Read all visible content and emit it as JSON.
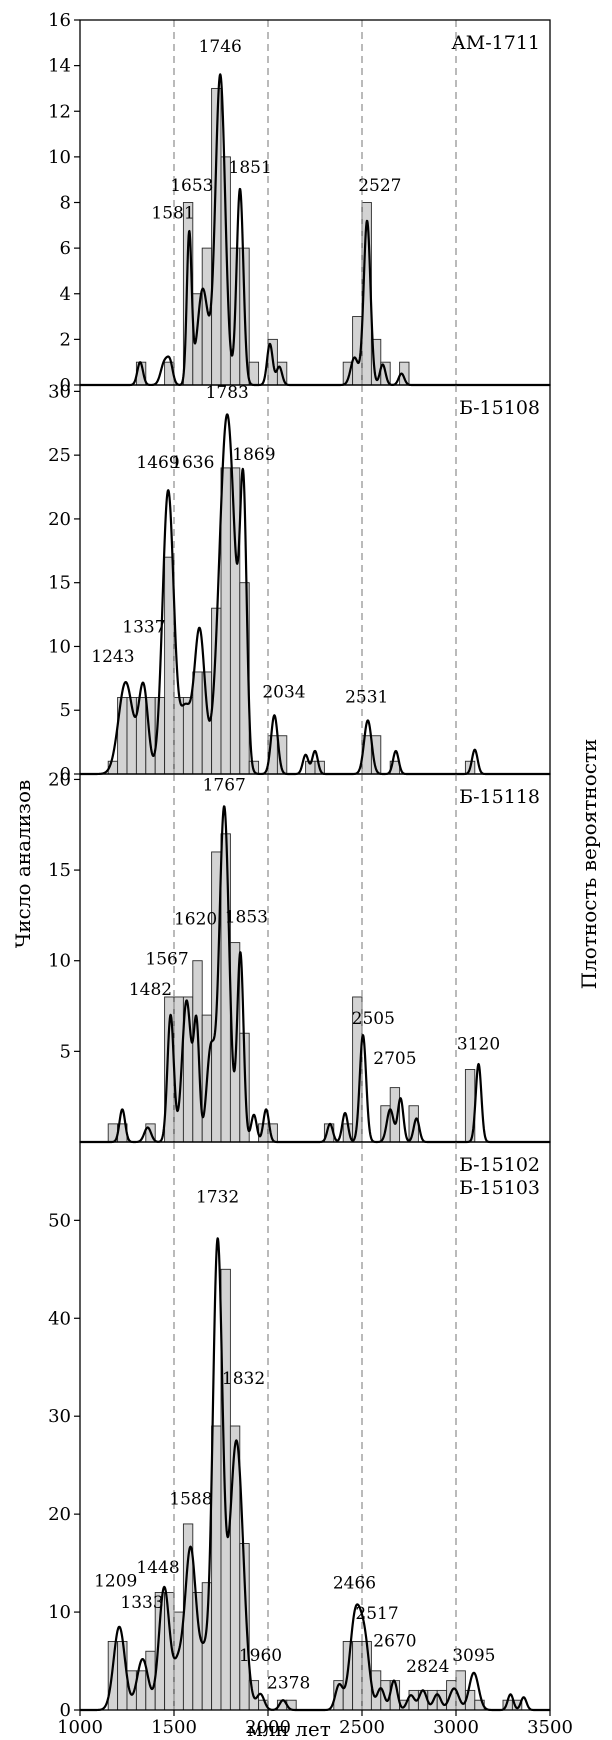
{
  "figure": {
    "ylabel_left": "Число анализов",
    "ylabel_right": "Плотность вероятности",
    "xlabel": "млн лет",
    "x_ticks": [
      1000,
      1500,
      2000,
      2500,
      3000,
      3500
    ]
  },
  "chart_data": [
    {
      "type": "bar",
      "sample_labels": [
        "АМ-1711"
      ],
      "xlim": [
        1000,
        3500
      ],
      "ylim": [
        0,
        16
      ],
      "yticks": [
        0,
        2,
        4,
        6,
        8,
        10,
        12,
        14,
        16
      ],
      "bin_width": 50,
      "dashed_reference_lines": [
        1500,
        2000,
        2500,
        3000
      ],
      "histogram": [
        {
          "x0": 1300,
          "count": 1
        },
        {
          "x0": 1450,
          "count": 1
        },
        {
          "x0": 1550,
          "count": 8
        },
        {
          "x0": 1600,
          "count": 4
        },
        {
          "x0": 1650,
          "count": 6
        },
        {
          "x0": 1700,
          "count": 13
        },
        {
          "x0": 1750,
          "count": 10
        },
        {
          "x0": 1800,
          "count": 6
        },
        {
          "x0": 1850,
          "count": 6
        },
        {
          "x0": 1900,
          "count": 1
        },
        {
          "x0": 2000,
          "count": 2
        },
        {
          "x0": 2050,
          "count": 1
        },
        {
          "x0": 2400,
          "count": 1
        },
        {
          "x0": 2450,
          "count": 3
        },
        {
          "x0": 2500,
          "count": 8
        },
        {
          "x0": 2550,
          "count": 2
        },
        {
          "x0": 2600,
          "count": 1
        },
        {
          "x0": 2700,
          "count": 1
        }
      ],
      "density_peaks": [
        {
          "x": 1320,
          "h": 1.0,
          "w": 15
        },
        {
          "x": 1450,
          "h": 1.0,
          "w": 20
        },
        {
          "x": 1480,
          "h": 0.8,
          "w": 15
        },
        {
          "x": 1581,
          "h": 6.6,
          "w": 13
        },
        {
          "x": 1653,
          "h": 4.2,
          "w": 28
        },
        {
          "x": 1746,
          "h": 13.6,
          "w": 26
        },
        {
          "x": 1851,
          "h": 8.6,
          "w": 18
        },
        {
          "x": 2010,
          "h": 1.8,
          "w": 15
        },
        {
          "x": 2060,
          "h": 0.8,
          "w": 15
        },
        {
          "x": 2460,
          "h": 1.2,
          "w": 20
        },
        {
          "x": 2527,
          "h": 7.2,
          "w": 18
        },
        {
          "x": 2610,
          "h": 0.9,
          "w": 15
        },
        {
          "x": 2710,
          "h": 0.5,
          "w": 15
        }
      ],
      "annotations": [
        {
          "text": "1746",
          "x": 1746,
          "y": 14.6
        },
        {
          "text": "1653",
          "x": 1595,
          "y": 8.5
        },
        {
          "text": "1581",
          "x": 1495,
          "y": 7.3
        },
        {
          "text": "1851",
          "x": 1905,
          "y": 9.3
        },
        {
          "text": "2527",
          "x": 2595,
          "y": 8.5
        }
      ]
    },
    {
      "type": "bar",
      "sample_labels": [
        "Б-15108"
      ],
      "xlim": [
        1000,
        3500
      ],
      "ylim": [
        0,
        30.5
      ],
      "yticks": [
        0,
        5,
        10,
        15,
        20,
        25,
        30
      ],
      "bin_width": 50,
      "dashed_reference_lines": [
        1500,
        2000,
        2500,
        3000
      ],
      "histogram": [
        {
          "x0": 1150,
          "count": 1
        },
        {
          "x0": 1200,
          "count": 6
        },
        {
          "x0": 1250,
          "count": 6
        },
        {
          "x0": 1300,
          "count": 6
        },
        {
          "x0": 1350,
          "count": 6
        },
        {
          "x0": 1400,
          "count": 6
        },
        {
          "x0": 1450,
          "count": 17
        },
        {
          "x0": 1500,
          "count": 6
        },
        {
          "x0": 1550,
          "count": 6
        },
        {
          "x0": 1600,
          "count": 8
        },
        {
          "x0": 1650,
          "count": 8
        },
        {
          "x0": 1700,
          "count": 13
        },
        {
          "x0": 1750,
          "count": 24
        },
        {
          "x0": 1800,
          "count": 24
        },
        {
          "x0": 1850,
          "count": 15
        },
        {
          "x0": 1900,
          "count": 1
        },
        {
          "x0": 2000,
          "count": 3
        },
        {
          "x0": 2050,
          "count": 3
        },
        {
          "x0": 2200,
          "count": 1
        },
        {
          "x0": 2250,
          "count": 1
        },
        {
          "x0": 2500,
          "count": 3
        },
        {
          "x0": 2550,
          "count": 3
        },
        {
          "x0": 2650,
          "count": 1
        },
        {
          "x0": 3050,
          "count": 1
        }
      ],
      "density_peaks": [
        {
          "x": 1243,
          "h": 7.2,
          "w": 38
        },
        {
          "x": 1337,
          "h": 6.8,
          "w": 25
        },
        {
          "x": 1469,
          "h": 22.2,
          "w": 30
        },
        {
          "x": 1560,
          "h": 5.0,
          "w": 30
        },
        {
          "x": 1636,
          "h": 11.2,
          "w": 28
        },
        {
          "x": 1783,
          "h": 28.2,
          "w": 42
        },
        {
          "x": 1869,
          "h": 20.2,
          "w": 18
        },
        {
          "x": 2034,
          "h": 4.6,
          "w": 18
        },
        {
          "x": 2200,
          "h": 1.5,
          "w": 15
        },
        {
          "x": 2250,
          "h": 1.8,
          "w": 15
        },
        {
          "x": 2531,
          "h": 4.2,
          "w": 20
        },
        {
          "x": 2680,
          "h": 1.8,
          "w": 15
        },
        {
          "x": 3100,
          "h": 1.9,
          "w": 15
        }
      ],
      "annotations": [
        {
          "text": "1783",
          "x": 1783,
          "y": 29.5
        },
        {
          "text": "1469",
          "x": 1415,
          "y": 24.0
        },
        {
          "text": "1636",
          "x": 1600,
          "y": 24.0
        },
        {
          "text": "1869",
          "x": 1925,
          "y": 24.6
        },
        {
          "text": "1337",
          "x": 1340,
          "y": 11.1
        },
        {
          "text": "1243",
          "x": 1175,
          "y": 8.8
        },
        {
          "text": "2034",
          "x": 2085,
          "y": 6.0
        },
        {
          "text": "2531",
          "x": 2525,
          "y": 5.6
        }
      ]
    },
    {
      "type": "bar",
      "sample_labels": [
        "Б-15118"
      ],
      "xlim": [
        1000,
        3500
      ],
      "ylim": [
        0,
        20.3
      ],
      "yticks": [
        5,
        10,
        15,
        20
      ],
      "bin_width": 50,
      "dashed_reference_lines": [
        1500,
        2000,
        2500,
        3000
      ],
      "histogram": [
        {
          "x0": 1150,
          "count": 1
        },
        {
          "x0": 1200,
          "count": 1
        },
        {
          "x0": 1350,
          "count": 1
        },
        {
          "x0": 1450,
          "count": 8
        },
        {
          "x0": 1500,
          "count": 8
        },
        {
          "x0": 1550,
          "count": 8
        },
        {
          "x0": 1600,
          "count": 10
        },
        {
          "x0": 1650,
          "count": 7
        },
        {
          "x0": 1700,
          "count": 16
        },
        {
          "x0": 1750,
          "count": 17
        },
        {
          "x0": 1800,
          "count": 11
        },
        {
          "x0": 1850,
          "count": 6
        },
        {
          "x0": 1950,
          "count": 1
        },
        {
          "x0": 2000,
          "count": 1
        },
        {
          "x0": 2300,
          "count": 1
        },
        {
          "x0": 2400,
          "count": 1
        },
        {
          "x0": 2450,
          "count": 8
        },
        {
          "x0": 2600,
          "count": 2
        },
        {
          "x0": 2650,
          "count": 3
        },
        {
          "x0": 2750,
          "count": 2
        },
        {
          "x0": 3050,
          "count": 4
        }
      ],
      "density_peaks": [
        {
          "x": 1225,
          "h": 1.8,
          "w": 15
        },
        {
          "x": 1360,
          "h": 0.8,
          "w": 18
        },
        {
          "x": 1482,
          "h": 7.0,
          "w": 17
        },
        {
          "x": 1567,
          "h": 7.8,
          "w": 24
        },
        {
          "x": 1620,
          "h": 6.2,
          "w": 15
        },
        {
          "x": 1695,
          "h": 5.0,
          "w": 22
        },
        {
          "x": 1767,
          "h": 18.5,
          "w": 26
        },
        {
          "x": 1853,
          "h": 10.4,
          "w": 17
        },
        {
          "x": 1925,
          "h": 1.5,
          "w": 15
        },
        {
          "x": 1990,
          "h": 1.8,
          "w": 15
        },
        {
          "x": 2330,
          "h": 1.0,
          "w": 15
        },
        {
          "x": 2410,
          "h": 1.6,
          "w": 15
        },
        {
          "x": 2505,
          "h": 5.9,
          "w": 17
        },
        {
          "x": 2650,
          "h": 1.8,
          "w": 18
        },
        {
          "x": 2705,
          "h": 2.4,
          "w": 15
        },
        {
          "x": 2790,
          "h": 1.3,
          "w": 15
        },
        {
          "x": 3120,
          "h": 4.3,
          "w": 15
        }
      ],
      "annotations": [
        {
          "text": "1767",
          "x": 1767,
          "y": 19.4
        },
        {
          "text": "1620",
          "x": 1615,
          "y": 12.0
        },
        {
          "text": "1853",
          "x": 1885,
          "y": 12.1
        },
        {
          "text": "1567",
          "x": 1463,
          "y": 9.8
        },
        {
          "text": "1482",
          "x": 1375,
          "y": 8.1
        },
        {
          "text": "2505",
          "x": 2560,
          "y": 6.5
        },
        {
          "text": "2705",
          "x": 2675,
          "y": 4.3
        },
        {
          "text": "3120",
          "x": 3120,
          "y": 5.1
        }
      ]
    },
    {
      "type": "bar",
      "sample_labels": [
        "Б-15102",
        "Б-15103"
      ],
      "xlim": [
        1000,
        3500
      ],
      "ylim": [
        0,
        58
      ],
      "yticks": [
        0,
        10,
        20,
        30,
        40,
        50
      ],
      "bin_width": 50,
      "dashed_reference_lines": [
        1500,
        2000,
        2500,
        3000
      ],
      "histogram": [
        {
          "x0": 1150,
          "count": 7
        },
        {
          "x0": 1200,
          "count": 7
        },
        {
          "x0": 1250,
          "count": 4
        },
        {
          "x0": 1300,
          "count": 4
        },
        {
          "x0": 1350,
          "count": 6
        },
        {
          "x0": 1400,
          "count": 12
        },
        {
          "x0": 1450,
          "count": 12
        },
        {
          "x0": 1500,
          "count": 10
        },
        {
          "x0": 1550,
          "count": 19
        },
        {
          "x0": 1600,
          "count": 12
        },
        {
          "x0": 1650,
          "count": 13
        },
        {
          "x0": 1700,
          "count": 29
        },
        {
          "x0": 1750,
          "count": 45
        },
        {
          "x0": 1800,
          "count": 29
        },
        {
          "x0": 1850,
          "count": 17
        },
        {
          "x0": 1900,
          "count": 3
        },
        {
          "x0": 1950,
          "count": 1
        },
        {
          "x0": 2050,
          "count": 1
        },
        {
          "x0": 2100,
          "count": 1
        },
        {
          "x0": 2350,
          "count": 3
        },
        {
          "x0": 2400,
          "count": 7
        },
        {
          "x0": 2450,
          "count": 7
        },
        {
          "x0": 2500,
          "count": 7
        },
        {
          "x0": 2550,
          "count": 4
        },
        {
          "x0": 2600,
          "count": 3
        },
        {
          "x0": 2650,
          "count": 3
        },
        {
          "x0": 2700,
          "count": 1
        },
        {
          "x0": 2750,
          "count": 2
        },
        {
          "x0": 2800,
          "count": 2
        },
        {
          "x0": 2850,
          "count": 2
        },
        {
          "x0": 2900,
          "count": 2
        },
        {
          "x0": 2950,
          "count": 3
        },
        {
          "x0": 3000,
          "count": 4
        },
        {
          "x0": 3050,
          "count": 2
        },
        {
          "x0": 3100,
          "count": 1
        },
        {
          "x0": 3250,
          "count": 1
        },
        {
          "x0": 3300,
          "count": 1
        }
      ],
      "density_peaks": [
        {
          "x": 1209,
          "h": 8.5,
          "w": 30
        },
        {
          "x": 1333,
          "h": 5.2,
          "w": 30
        },
        {
          "x": 1448,
          "h": 12.5,
          "w": 28
        },
        {
          "x": 1520,
          "h": 4.0,
          "w": 25
        },
        {
          "x": 1588,
          "h": 16.5,
          "w": 30
        },
        {
          "x": 1660,
          "h": 5.0,
          "w": 25
        },
        {
          "x": 1732,
          "h": 47.5,
          "w": 26
        },
        {
          "x": 1832,
          "h": 27.5,
          "w": 36
        },
        {
          "x": 1960,
          "h": 1.6,
          "w": 20
        },
        {
          "x": 2080,
          "h": 1.0,
          "w": 18
        },
        {
          "x": 2378,
          "h": 2.5,
          "w": 20
        },
        {
          "x": 2466,
          "h": 9.8,
          "w": 30
        },
        {
          "x": 2517,
          "h": 5.8,
          "w": 25
        },
        {
          "x": 2600,
          "h": 2.2,
          "w": 20
        },
        {
          "x": 2670,
          "h": 3.0,
          "w": 18
        },
        {
          "x": 2760,
          "h": 1.5,
          "w": 20
        },
        {
          "x": 2824,
          "h": 2.0,
          "w": 20
        },
        {
          "x": 2900,
          "h": 1.6,
          "w": 20
        },
        {
          "x": 2990,
          "h": 2.2,
          "w": 25
        },
        {
          "x": 3095,
          "h": 3.8,
          "w": 25
        },
        {
          "x": 3290,
          "h": 1.6,
          "w": 15
        },
        {
          "x": 3360,
          "h": 1.3,
          "w": 15
        }
      ],
      "annotations": [
        {
          "text": "1732",
          "x": 1732,
          "y": 51.8
        },
        {
          "text": "1832",
          "x": 1870,
          "y": 33.3
        },
        {
          "text": "1588",
          "x": 1590,
          "y": 21.0
        },
        {
          "text": "1448",
          "x": 1415,
          "y": 14.0
        },
        {
          "text": "1333",
          "x": 1330,
          "y": 10.4
        },
        {
          "text": "1209",
          "x": 1190,
          "y": 12.6
        },
        {
          "text": "1960",
          "x": 1960,
          "y": 5.0
        },
        {
          "text": "2378",
          "x": 2110,
          "y": 2.2
        },
        {
          "text": "2466",
          "x": 2460,
          "y": 12.4
        },
        {
          "text": "2517",
          "x": 2580,
          "y": 9.3
        },
        {
          "text": "2670",
          "x": 2675,
          "y": 6.5
        },
        {
          "text": "2824",
          "x": 2850,
          "y": 3.9
        },
        {
          "text": "3095",
          "x": 3095,
          "y": 5.0
        }
      ]
    }
  ]
}
